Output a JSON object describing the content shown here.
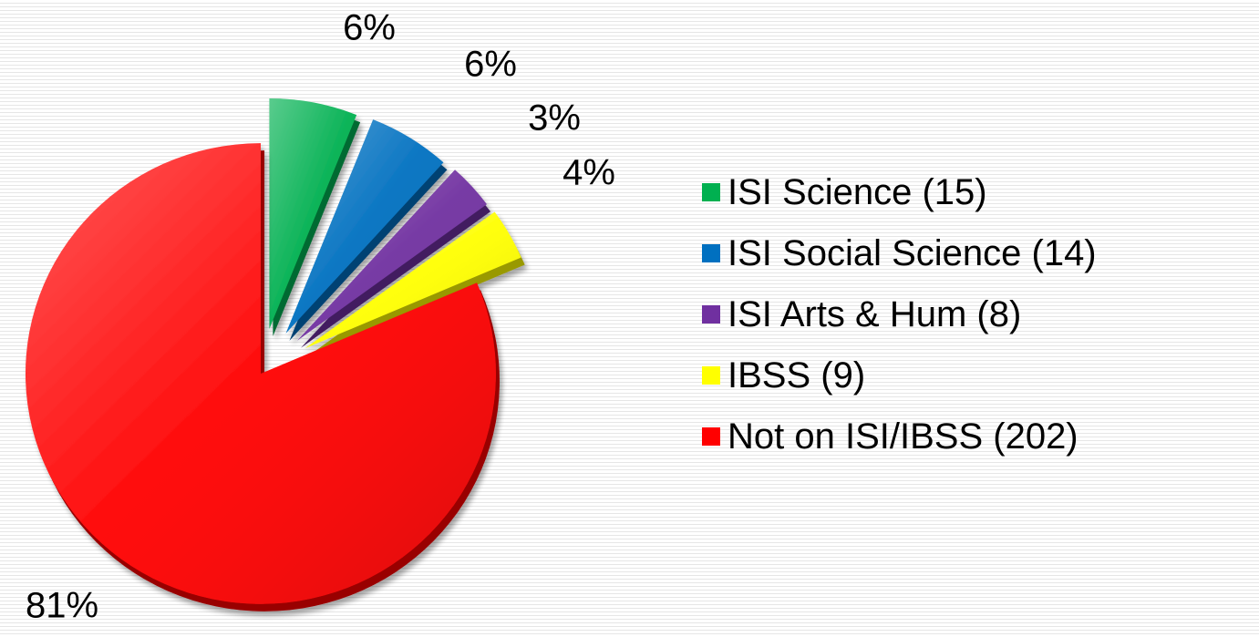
{
  "chart_data": {
    "type": "pie",
    "slices": [
      {
        "label": "ISI Science (15)",
        "value": 15,
        "percent_label": "6%",
        "color": "#00b050"
      },
      {
        "label": "ISI Social Science (14)",
        "value": 14,
        "percent_label": "6%",
        "color": "#0070c0"
      },
      {
        "label": "ISI Arts & Hum (8)",
        "value": 8,
        "percent_label": "3%",
        "color": "#7030a0"
      },
      {
        "label": "IBSS (9)",
        "value": 9,
        "percent_label": "4%",
        "color": "#ffff00"
      },
      {
        "label": "Not on ISI/IBSS (202)",
        "value": 202,
        "percent_label": "81%",
        "color": "#ff0000"
      }
    ],
    "legend_position": "right",
    "exploded": true,
    "style": "3d"
  }
}
